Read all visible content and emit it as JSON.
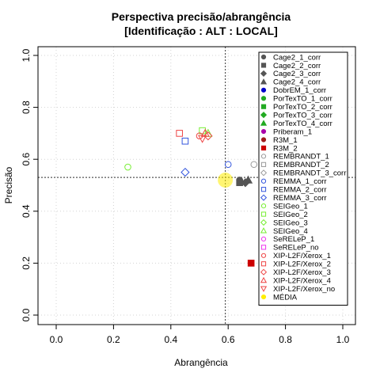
{
  "chart_data": {
    "type": "scatter",
    "title": "Perspectiva precisão/abrangência",
    "subtitle": "[Identificação : ALT : LOCAL]",
    "xlabel": "Abrangência",
    "ylabel": "Precisão",
    "xlim": [
      0,
      1
    ],
    "ylim": [
      0,
      1
    ],
    "x_ticks": [
      "0.0",
      "0.2",
      "0.4",
      "0.6",
      "0.8",
      "1.0"
    ],
    "y_ticks": [
      "0.0",
      "0.2",
      "0.4",
      "0.6",
      "0.8",
      "1.0"
    ],
    "grid": true,
    "legend_position": "top-right",
    "reference_lines": {
      "x": 0.59,
      "y": 0.53
    },
    "series": [
      {
        "name": "Cage2_1_corr",
        "color": "#555555",
        "shape": "circle-filled",
        "points": [
          [
            0.64,
            0.52
          ]
        ]
      },
      {
        "name": "Cage2_2_corr",
        "color": "#555555",
        "shape": "square-filled",
        "points": [
          [
            0.64,
            0.51
          ]
        ]
      },
      {
        "name": "Cage2_3_corr",
        "color": "#555555",
        "shape": "diamond-filled",
        "points": [
          [
            0.66,
            0.51
          ]
        ]
      },
      {
        "name": "Cage2_4_corr",
        "color": "#555555",
        "shape": "triangle-filled",
        "points": [
          [
            0.67,
            0.52
          ]
        ]
      },
      {
        "name": "DobrEM_1_corr",
        "color": "#0000cc",
        "shape": "circle-filled",
        "points": []
      },
      {
        "name": "PorTexTO_1_corr",
        "color": "#22aa22",
        "shape": "circle-filled",
        "points": []
      },
      {
        "name": "PorTexTO_2_corr",
        "color": "#22aa22",
        "shape": "square-filled",
        "points": []
      },
      {
        "name": "PorTexTO_3_corr",
        "color": "#22aa22",
        "shape": "diamond-filled",
        "points": []
      },
      {
        "name": "PorTexTO_4_corr",
        "color": "#22aa22",
        "shape": "triangle-filled",
        "points": []
      },
      {
        "name": "Priberam_1",
        "color": "#aa00aa",
        "shape": "circle-filled",
        "points": []
      },
      {
        "name": "R3M_1",
        "color": "#a01c1c",
        "shape": "circle-filled",
        "points": []
      },
      {
        "name": "R3M_2",
        "color": "#cc0000",
        "shape": "square-filled",
        "points": [
          [
            0.68,
            0.2
          ]
        ]
      },
      {
        "name": "REMBRANDT_1",
        "color": "#999999",
        "shape": "circle-open",
        "points": [
          [
            0.69,
            0.58
          ]
        ]
      },
      {
        "name": "REMBRANDT_2",
        "color": "#999999",
        "shape": "square-open",
        "points": []
      },
      {
        "name": "REMBRANDT_3_corr",
        "color": "#999999",
        "shape": "diamond-open",
        "points": []
      },
      {
        "name": "REMMA_1_corr",
        "color": "#3355dd",
        "shape": "circle-open",
        "points": [
          [
            0.6,
            0.58
          ]
        ]
      },
      {
        "name": "REMMA_2_corr",
        "color": "#3355dd",
        "shape": "square-open",
        "points": [
          [
            0.45,
            0.67
          ]
        ]
      },
      {
        "name": "REMMA_3_corr",
        "color": "#3355dd",
        "shape": "diamond-open",
        "points": [
          [
            0.45,
            0.55
          ]
        ]
      },
      {
        "name": "SEIGeo_1",
        "color": "#77ee33",
        "shape": "circle-open",
        "points": [
          [
            0.25,
            0.57
          ]
        ]
      },
      {
        "name": "SEIGeo_2",
        "color": "#77ee33",
        "shape": "square-open",
        "points": [
          [
            0.51,
            0.71
          ]
        ]
      },
      {
        "name": "SEIGeo_3",
        "color": "#77ee33",
        "shape": "diamond-open",
        "points": []
      },
      {
        "name": "SEIGeo_4",
        "color": "#77ee33",
        "shape": "triangle-open",
        "points": [
          [
            0.53,
            0.7
          ]
        ]
      },
      {
        "name": "SeRELeP_1",
        "color": "#ee33ee",
        "shape": "circle-open",
        "points": []
      },
      {
        "name": "SeRELeP_no",
        "color": "#ee33ee",
        "shape": "square-open",
        "points": []
      },
      {
        "name": "XIP-L2F/Xerox_1",
        "color": "#ee4444",
        "shape": "circle-open",
        "points": [
          [
            0.5,
            0.69
          ]
        ]
      },
      {
        "name": "XIP-L2F/Xerox_2",
        "color": "#ee4444",
        "shape": "square-open",
        "points": [
          [
            0.43,
            0.7
          ]
        ]
      },
      {
        "name": "XIP-L2F/Xerox_3",
        "color": "#ee4444",
        "shape": "diamond-open",
        "points": [
          [
            0.53,
            0.69
          ]
        ]
      },
      {
        "name": "XIP-L2F/Xerox_4",
        "color": "#ee4444",
        "shape": "triangle-open",
        "points": [
          [
            0.52,
            0.7
          ]
        ]
      },
      {
        "name": "XIP-L2F/Xerox_no",
        "color": "#ee4444",
        "shape": "triangle-down-open",
        "points": [
          [
            0.51,
            0.68
          ]
        ]
      },
      {
        "name": "MÉDIA",
        "color": "#ffee00",
        "shape": "circle-filled",
        "points": [
          [
            0.59,
            0.52
          ]
        ],
        "large": true
      }
    ]
  }
}
